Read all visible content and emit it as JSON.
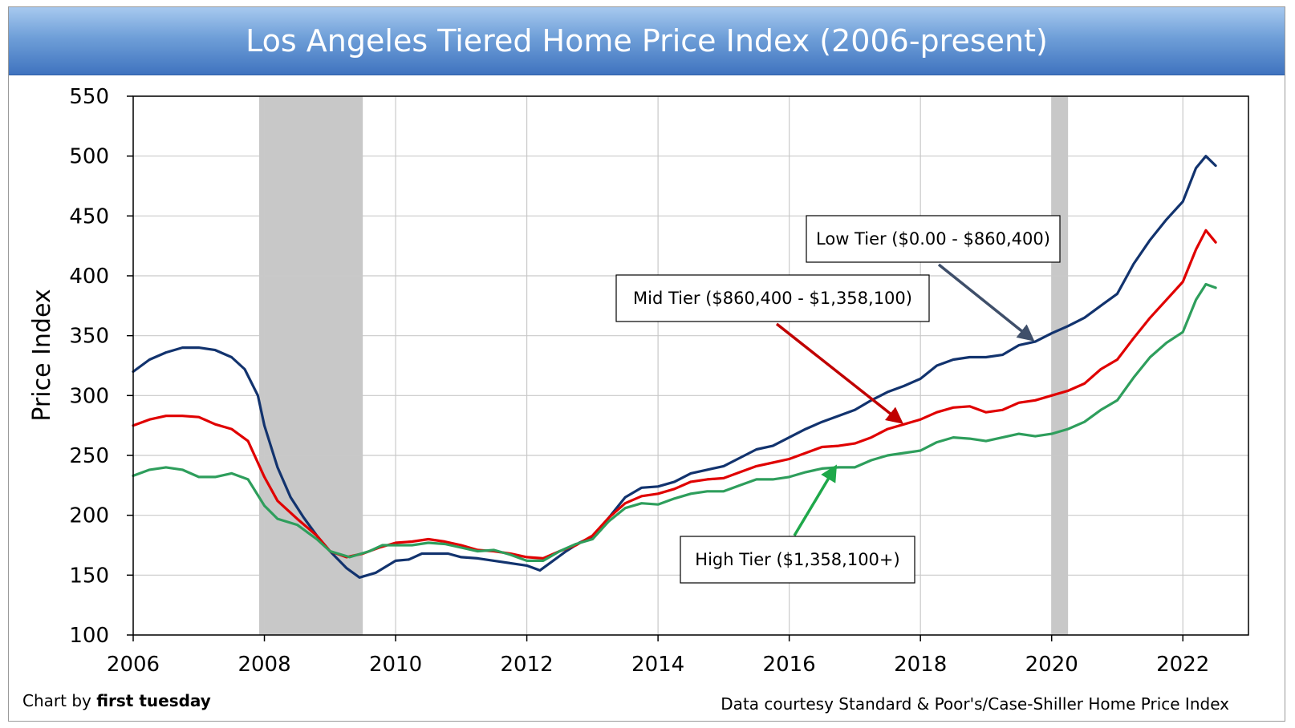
{
  "header": {
    "title": "Los Angeles Tiered Home Price Index (2006-present)"
  },
  "footer": {
    "credit_prefix": "Chart by ",
    "credit_brand": "first tuesday",
    "source": "Data courtesy Standard & Poor's/Case-Shiller Home Price Index"
  },
  "colors": {
    "low": "#12336e",
    "mid": "#e00000",
    "high": "#2e9e5c",
    "recession": "#c8c8c8"
  },
  "chart_data": {
    "type": "line",
    "title": "Los Angeles Tiered Home Price Index (2006-present)",
    "xlabel": "",
    "ylabel": "Price Index",
    "xlim": [
      2006,
      2023
    ],
    "ylim": [
      100,
      550
    ],
    "x_ticks": [
      2006,
      2008,
      2010,
      2012,
      2014,
      2016,
      2018,
      2020,
      2022
    ],
    "y_ticks": [
      100,
      150,
      200,
      250,
      300,
      350,
      400,
      450,
      500,
      550
    ],
    "grid": true,
    "legend": "callouts",
    "recessions": [
      [
        2007.92,
        2009.5
      ],
      [
        2020.0,
        2020.25
      ]
    ],
    "series": [
      {
        "name": "Low Tier ($0.00 - $860,400)",
        "color": "#12336e",
        "points": [
          [
            2006,
            320
          ],
          [
            2006.25,
            330
          ],
          [
            2006.5,
            336
          ],
          [
            2006.75,
            340
          ],
          [
            2007,
            340
          ],
          [
            2007.25,
            338
          ],
          [
            2007.5,
            332
          ],
          [
            2007.7,
            322
          ],
          [
            2007.9,
            300
          ],
          [
            2008,
            275
          ],
          [
            2008.2,
            240
          ],
          [
            2008.4,
            215
          ],
          [
            2008.6,
            198
          ],
          [
            2008.8,
            183
          ],
          [
            2009,
            170
          ],
          [
            2009.25,
            156
          ],
          [
            2009.45,
            148
          ],
          [
            2009.7,
            152
          ],
          [
            2010,
            162
          ],
          [
            2010.2,
            163
          ],
          [
            2010.4,
            168
          ],
          [
            2010.6,
            168
          ],
          [
            2010.8,
            168
          ],
          [
            2011,
            165
          ],
          [
            2011.25,
            164
          ],
          [
            2011.5,
            162
          ],
          [
            2011.75,
            160
          ],
          [
            2012,
            158
          ],
          [
            2012.2,
            154
          ],
          [
            2012.4,
            162
          ],
          [
            2012.6,
            170
          ],
          [
            2012.8,
            177
          ],
          [
            2013,
            182
          ],
          [
            2013.25,
            198
          ],
          [
            2013.5,
            215
          ],
          [
            2013.75,
            223
          ],
          [
            2014,
            224
          ],
          [
            2014.25,
            228
          ],
          [
            2014.5,
            235
          ],
          [
            2014.75,
            238
          ],
          [
            2015,
            241
          ],
          [
            2015.25,
            248
          ],
          [
            2015.5,
            255
          ],
          [
            2015.75,
            258
          ],
          [
            2016,
            265
          ],
          [
            2016.25,
            272
          ],
          [
            2016.5,
            278
          ],
          [
            2016.75,
            283
          ],
          [
            2017,
            288
          ],
          [
            2017.25,
            296
          ],
          [
            2017.5,
            303
          ],
          [
            2017.75,
            308
          ],
          [
            2018,
            314
          ],
          [
            2018.25,
            325
          ],
          [
            2018.5,
            330
          ],
          [
            2018.75,
            332
          ],
          [
            2019,
            332
          ],
          [
            2019.25,
            334
          ],
          [
            2019.5,
            342
          ],
          [
            2019.75,
            345
          ],
          [
            2020,
            352
          ],
          [
            2020.25,
            358
          ],
          [
            2020.5,
            365
          ],
          [
            2020.75,
            375
          ],
          [
            2021,
            385
          ],
          [
            2021.25,
            410
          ],
          [
            2021.5,
            430
          ],
          [
            2021.75,
            447
          ],
          [
            2022,
            462
          ],
          [
            2022.2,
            490
          ],
          [
            2022.35,
            500
          ],
          [
            2022.5,
            492
          ]
        ]
      },
      {
        "name": "Mid Tier ($860,400 - $1,358,100)",
        "color": "#e00000",
        "points": [
          [
            2006,
            275
          ],
          [
            2006.25,
            280
          ],
          [
            2006.5,
            283
          ],
          [
            2006.75,
            283
          ],
          [
            2007,
            282
          ],
          [
            2007.25,
            276
          ],
          [
            2007.5,
            272
          ],
          [
            2007.75,
            262
          ],
          [
            2008,
            232
          ],
          [
            2008.2,
            212
          ],
          [
            2008.5,
            197
          ],
          [
            2008.8,
            183
          ],
          [
            2009,
            170
          ],
          [
            2009.25,
            165
          ],
          [
            2009.5,
            168
          ],
          [
            2009.75,
            173
          ],
          [
            2010,
            177
          ],
          [
            2010.25,
            178
          ],
          [
            2010.5,
            180
          ],
          [
            2010.75,
            178
          ],
          [
            2011,
            175
          ],
          [
            2011.25,
            171
          ],
          [
            2011.5,
            170
          ],
          [
            2011.75,
            168
          ],
          [
            2012,
            165
          ],
          [
            2012.25,
            164
          ],
          [
            2012.5,
            170
          ],
          [
            2012.75,
            175
          ],
          [
            2013,
            183
          ],
          [
            2013.25,
            198
          ],
          [
            2013.5,
            210
          ],
          [
            2013.75,
            216
          ],
          [
            2014,
            218
          ],
          [
            2014.25,
            222
          ],
          [
            2014.5,
            228
          ],
          [
            2014.75,
            230
          ],
          [
            2015,
            231
          ],
          [
            2015.25,
            236
          ],
          [
            2015.5,
            241
          ],
          [
            2015.75,
            244
          ],
          [
            2016,
            247
          ],
          [
            2016.25,
            252
          ],
          [
            2016.5,
            257
          ],
          [
            2016.75,
            258
          ],
          [
            2017,
            260
          ],
          [
            2017.25,
            265
          ],
          [
            2017.5,
            272
          ],
          [
            2017.75,
            276
          ],
          [
            2018,
            280
          ],
          [
            2018.25,
            286
          ],
          [
            2018.5,
            290
          ],
          [
            2018.75,
            291
          ],
          [
            2019,
            286
          ],
          [
            2019.25,
            288
          ],
          [
            2019.5,
            294
          ],
          [
            2019.75,
            296
          ],
          [
            2020,
            300
          ],
          [
            2020.25,
            304
          ],
          [
            2020.5,
            310
          ],
          [
            2020.75,
            322
          ],
          [
            2021,
            330
          ],
          [
            2021.25,
            348
          ],
          [
            2021.5,
            365
          ],
          [
            2021.75,
            380
          ],
          [
            2022,
            395
          ],
          [
            2022.2,
            422
          ],
          [
            2022.35,
            438
          ],
          [
            2022.5,
            428
          ]
        ]
      },
      {
        "name": "High Tier ($1,358,100+)",
        "color": "#2e9e5c",
        "points": [
          [
            2006,
            233
          ],
          [
            2006.25,
            238
          ],
          [
            2006.5,
            240
          ],
          [
            2006.75,
            238
          ],
          [
            2007,
            232
          ],
          [
            2007.25,
            232
          ],
          [
            2007.5,
            235
          ],
          [
            2007.75,
            230
          ],
          [
            2008,
            208
          ],
          [
            2008.2,
            197
          ],
          [
            2008.5,
            192
          ],
          [
            2008.8,
            180
          ],
          [
            2009,
            170
          ],
          [
            2009.3,
            165
          ],
          [
            2009.6,
            170
          ],
          [
            2009.8,
            175
          ],
          [
            2010,
            175
          ],
          [
            2010.25,
            175
          ],
          [
            2010.5,
            177
          ],
          [
            2010.75,
            176
          ],
          [
            2011,
            173
          ],
          [
            2011.25,
            170
          ],
          [
            2011.5,
            171
          ],
          [
            2011.75,
            167
          ],
          [
            2012,
            162
          ],
          [
            2012.25,
            162
          ],
          [
            2012.5,
            170
          ],
          [
            2012.75,
            176
          ],
          [
            2013,
            180
          ],
          [
            2013.25,
            195
          ],
          [
            2013.5,
            206
          ],
          [
            2013.75,
            210
          ],
          [
            2014,
            209
          ],
          [
            2014.25,
            214
          ],
          [
            2014.5,
            218
          ],
          [
            2014.75,
            220
          ],
          [
            2015,
            220
          ],
          [
            2015.25,
            225
          ],
          [
            2015.5,
            230
          ],
          [
            2015.75,
            230
          ],
          [
            2016,
            232
          ],
          [
            2016.25,
            236
          ],
          [
            2016.5,
            239
          ],
          [
            2016.75,
            240
          ],
          [
            2017,
            240
          ],
          [
            2017.25,
            246
          ],
          [
            2017.5,
            250
          ],
          [
            2017.75,
            252
          ],
          [
            2018,
            254
          ],
          [
            2018.25,
            261
          ],
          [
            2018.5,
            265
          ],
          [
            2018.75,
            264
          ],
          [
            2019,
            262
          ],
          [
            2019.25,
            265
          ],
          [
            2019.5,
            268
          ],
          [
            2019.75,
            266
          ],
          [
            2020,
            268
          ],
          [
            2020.25,
            272
          ],
          [
            2020.5,
            278
          ],
          [
            2020.75,
            288
          ],
          [
            2021,
            296
          ],
          [
            2021.25,
            315
          ],
          [
            2021.5,
            332
          ],
          [
            2021.75,
            344
          ],
          [
            2022,
            353
          ],
          [
            2022.2,
            380
          ],
          [
            2022.35,
            393
          ],
          [
            2022.5,
            390
          ]
        ]
      }
    ],
    "annotations": [
      {
        "text": "Low Tier ($0.00 - $860,400)",
        "series": 0,
        "target": [
          2019.7,
          347
        ]
      },
      {
        "text": "Mid Tier ($860,400 - $1,358,100)",
        "series": 1,
        "target": [
          2017.7,
          278
        ]
      },
      {
        "text": "High Tier ($1,358,100+)",
        "series": 2,
        "target": [
          2016.7,
          240
        ]
      }
    ]
  }
}
